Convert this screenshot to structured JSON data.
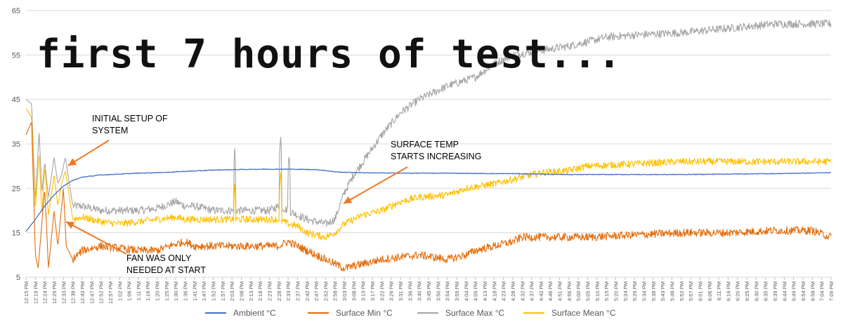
{
  "chart_data": {
    "type": "line",
    "title": "first 7 hours of test...",
    "xlabel": "",
    "ylabel": "",
    "ylim": [
      5,
      65
    ],
    "yticks": [
      5,
      15,
      25,
      35,
      45,
      55,
      65
    ],
    "grid": true,
    "legend_position": "bottom",
    "x_tick_labels": [
      "12:15 PM",
      "12:19 PM",
      "12:24 PM",
      "12:29 PM",
      "12:33 PM",
      "12:38 PM",
      "12:43 PM",
      "12:47 PM",
      "12:52 PM",
      "12:57 PM",
      "1:02 PM",
      "1:06 PM",
      "1:11 PM",
      "1:16 PM",
      "1:20 PM",
      "1:25 PM",
      "1:30 PM",
      "1:36 PM",
      "1:41 PM",
      "1:47 PM",
      "1:52 PM",
      "1:57 PM",
      "2:03 PM",
      "2:08 PM",
      "2:13 PM",
      "2:18 PM",
      "2:23 PM",
      "2:28 PM",
      "2:33 PM",
      "2:37 PM",
      "2:42 PM",
      "2:47 PM",
      "2:52 PM",
      "2:58 PM",
      "3:03 PM",
      "3:08 PM",
      "3:13 PM",
      "3:17 PM",
      "3:22 PM",
      "3:26 PM",
      "3:31 PM",
      "3:36 PM",
      "3:40 PM",
      "3:45 PM",
      "3:50 PM",
      "3:54 PM",
      "3:59 PM",
      "4:04 PM",
      "4:09 PM",
      "4:13 PM",
      "4:18 PM",
      "4:23 PM",
      "4:28 PM",
      "4:32 PM",
      "4:37 PM",
      "4:42 PM",
      "4:46 PM",
      "4:51 PM",
      "4:56 PM",
      "5:00 PM",
      "5:05 PM",
      "5:10 PM",
      "5:15 PM",
      "5:20 PM",
      "5:24 PM",
      "5:29 PM",
      "5:34 PM",
      "5:38 PM",
      "5:43 PM",
      "5:48 PM",
      "5:52 PM",
      "5:57 PM",
      "6:01 PM",
      "6:06 PM",
      "6:11 PM",
      "6:16 PM",
      "6:20 PM",
      "6:25 PM",
      "6:30 PM",
      "6:35 PM",
      "6:39 PM",
      "6:44 PM",
      "6:49 PM",
      "6:54 PM",
      "6:58 PM",
      "7:04 PM",
      "7:09 PM"
    ],
    "series": [
      {
        "name": "Ambient °C",
        "color": "#4472C4",
        "x": [
          0,
          1,
          2,
          3,
          4,
          5,
          6,
          8,
          10,
          12,
          15,
          18,
          20,
          22,
          25,
          28,
          31,
          32,
          33,
          34,
          36,
          40,
          45,
          50,
          52,
          55,
          58,
          60,
          65,
          70,
          75,
          80,
          86
        ],
        "values": [
          15.3,
          18,
          21,
          23.5,
          25.5,
          26.8,
          27.5,
          28,
          28.2,
          28.4,
          28.6,
          28.9,
          29.1,
          29.2,
          29.3,
          29.3,
          29.2,
          29,
          28.7,
          28.6,
          28.5,
          28.4,
          28.4,
          28.3,
          28.3,
          28.2,
          28.1,
          28.1,
          28.1,
          28.1,
          28.2,
          28.3,
          28.5
        ]
      },
      {
        "name": "Surface Min °C",
        "color": "#E36C0A",
        "x": [
          0,
          0.6,
          1,
          1.3,
          2,
          2.4,
          3,
          3.4,
          4,
          4.3,
          5,
          6,
          8,
          12,
          14,
          16,
          17,
          18,
          20,
          22,
          25,
          27,
          28,
          29,
          30,
          32,
          33,
          34,
          35,
          36,
          38,
          40,
          42,
          45,
          47,
          48,
          50,
          52,
          53,
          55,
          58,
          60,
          65,
          70,
          75,
          80,
          84,
          86
        ],
        "values": [
          37,
          40,
          10,
          7,
          25,
          7,
          20,
          12,
          25,
          12,
          9,
          11,
          12,
          11,
          11,
          12.5,
          13,
          12,
          12,
          12,
          12,
          12,
          13,
          12,
          11,
          9,
          8,
          7,
          7.5,
          8,
          9,
          9.5,
          10,
          9,
          10,
          11,
          12,
          13,
          14,
          14,
          14,
          14,
          14.5,
          15,
          15,
          15.5,
          15.5,
          14
        ]
      },
      {
        "name": "Surface Max °C",
        "color": "#A5A5A5",
        "x": [
          0,
          0.6,
          1,
          1.4,
          1.7,
          2,
          2.4,
          3,
          3.4,
          3.8,
          4.2,
          5,
          6,
          8,
          10,
          12,
          14,
          16,
          17,
          18,
          20,
          22,
          25,
          26,
          27,
          28,
          29,
          30,
          31,
          32,
          33,
          34,
          35,
          36,
          38,
          40,
          42,
          45,
          48,
          50,
          52,
          55,
          58,
          60,
          62,
          65,
          70,
          75,
          80,
          84,
          86
        ],
        "values": [
          45,
          44,
          22,
          38,
          24,
          31,
          23,
          32,
          26,
          28,
          32,
          21,
          21,
          20,
          20,
          20,
          20.5,
          22,
          21,
          21,
          20,
          20,
          20,
          20,
          21,
          20,
          19,
          18,
          17.5,
          17,
          18,
          24,
          28,
          31,
          37,
          42,
          45,
          48,
          50,
          53,
          55,
          56,
          57,
          58,
          59,
          59.5,
          60,
          61,
          62,
          62,
          62
        ]
      },
      {
        "name": "Surface Mean °C",
        "color": "#FFC000",
        "x": [
          0,
          0.6,
          1,
          1.4,
          1.7,
          2,
          2.4,
          3,
          3.4,
          3.8,
          4.2,
          5,
          6,
          8,
          10,
          12,
          14,
          16,
          17,
          18,
          20,
          22,
          25,
          26,
          27,
          28,
          29,
          30,
          31,
          32,
          33,
          34,
          35,
          36,
          38,
          40,
          42,
          45,
          47,
          50,
          52,
          55,
          58,
          60,
          65,
          70,
          75,
          80,
          84,
          86
        ],
        "values": [
          43,
          41,
          20,
          33,
          19,
          30,
          19,
          28,
          21,
          26,
          29,
          18,
          18.5,
          17.5,
          17,
          17.5,
          18,
          18.5,
          18,
          18,
          18,
          18,
          18,
          18,
          18,
          17,
          16.5,
          15,
          14.5,
          14,
          15,
          17,
          18,
          19,
          20,
          22,
          23,
          23.5,
          25,
          26,
          27,
          28.5,
          29,
          30,
          30.5,
          31,
          31,
          31,
          31,
          31
        ]
      }
    ],
    "spikes": [
      {
        "series": "Surface Max °C",
        "x": 22.3,
        "value": 34
      },
      {
        "series": "Surface Max °C",
        "x": 27.2,
        "value": 37
      },
      {
        "series": "Surface Max °C",
        "x": 28.1,
        "value": 33
      },
      {
        "series": "Surface Mean °C",
        "x": 22.3,
        "value": 26
      },
      {
        "series": "Surface Mean °C",
        "x": 27.2,
        "value": 29
      }
    ],
    "annotations": [
      {
        "lines": [
          "INITIAL SETUP OF",
          "SYSTEM"
        ]
      },
      {
        "lines": [
          "SURFACE TEMP",
          "STARTS INCREASING"
        ]
      },
      {
        "lines": [
          "FAN WAS ONLY",
          "NEEDED AT START"
        ]
      }
    ],
    "annotation_color": "#F07820"
  }
}
